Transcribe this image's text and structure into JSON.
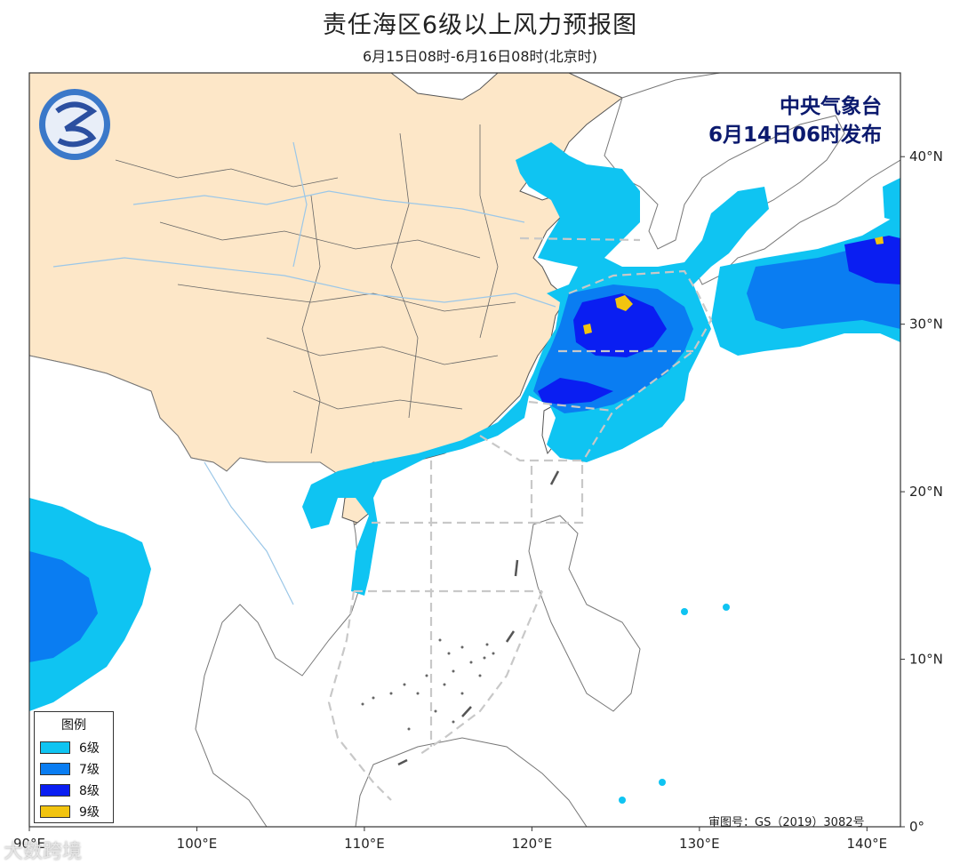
{
  "title": "责任海区6级以上风力预报图",
  "subtitle": "6月15日08时-6月16日08时(北京时)",
  "issuer": {
    "line1": "中央气象台",
    "line2": "6月14日06时发布"
  },
  "legend": {
    "title": "图例",
    "items": [
      {
        "label": "6级",
        "color": "#0fc4f2"
      },
      {
        "label": "7级",
        "color": "#0a7df2"
      },
      {
        "label": "8级",
        "color": "#0a1ef2"
      },
      {
        "label": "9级",
        "color": "#f2c40f"
      }
    ]
  },
  "axes": {
    "lon_labels": [
      "90°E",
      "100°E",
      "110°E",
      "120°E",
      "130°E",
      "140°E"
    ],
    "lat_labels": [
      "0°",
      "10°N",
      "20°N",
      "30°N",
      "40°N"
    ]
  },
  "approval": "审图号：GS（2019）3082号",
  "watermark": "大数跨境",
  "colors": {
    "land_china": "#fde7c8",
    "land_other": "#ffffff",
    "border": "#555555",
    "river": "#9bc7e8",
    "zone_line": "#c8c8c8"
  }
}
